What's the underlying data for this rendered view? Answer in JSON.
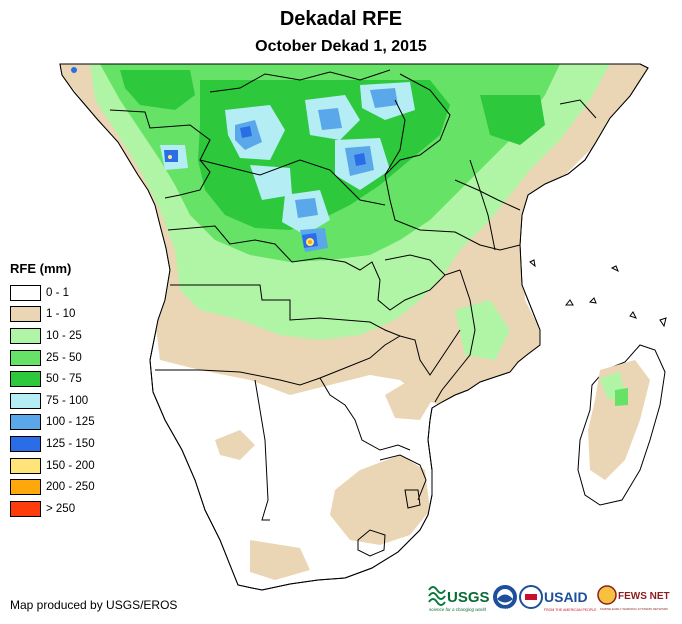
{
  "title": "Dekadal RFE",
  "subtitle": "October Dekad 1, 2015",
  "legend": {
    "title": "RFE (mm)",
    "items": [
      {
        "label": "0 - 1",
        "color": "#ffffff"
      },
      {
        "label": "1 - 10",
        "color": "#ead6b5"
      },
      {
        "label": "10 - 25",
        "color": "#b0f5a5"
      },
      {
        "label": "25 - 50",
        "color": "#66e266"
      },
      {
        "label": "50 - 75",
        "color": "#2dc83c"
      },
      {
        "label": "75 - 100",
        "color": "#b4eef4"
      },
      {
        "label": "100 - 125",
        "color": "#5aa8ea"
      },
      {
        "label": "125 - 150",
        "color": "#2a6de6"
      },
      {
        "label": "150 - 200",
        "color": "#ffe47a"
      },
      {
        "label": "200 - 250",
        "color": "#ffa80c"
      },
      {
        "label": "> 250",
        "color": "#ff3c0c"
      }
    ]
  },
  "credit": "Map produced by USGS/EROS",
  "logos": {
    "usgs": "USGS",
    "usgs_tagline": "science for a changing world",
    "noaa": "NOAA",
    "usaid": "USAID",
    "usaid_tagline": "FROM THE AMERICAN PEOPLE",
    "fews": "FEWS NET",
    "fews_tagline": "FAMINE EARLY WARNING SYSTEMS NETWORK"
  }
}
